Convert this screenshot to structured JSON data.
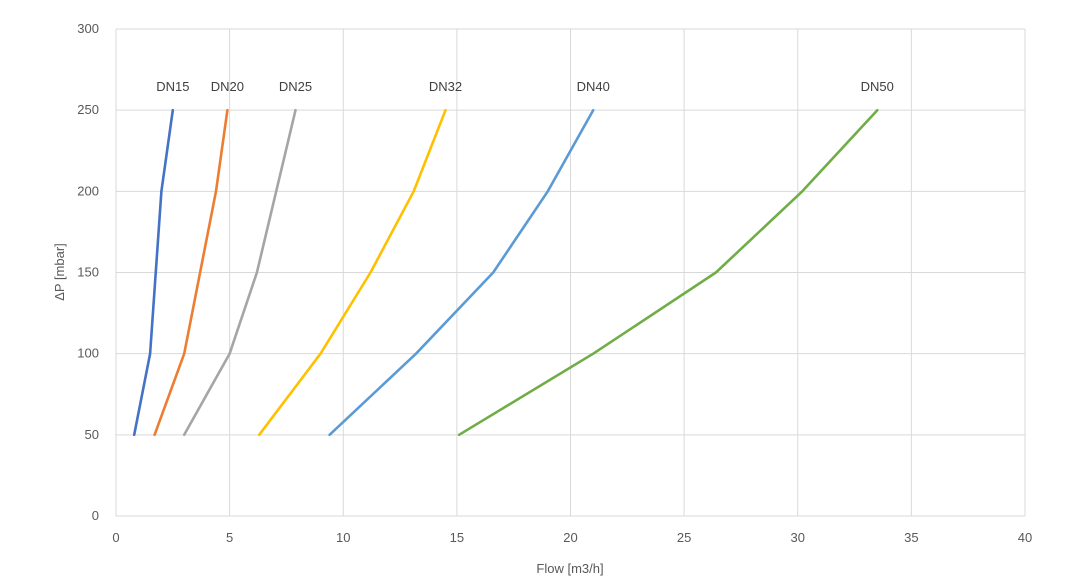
{
  "chart_data": {
    "type": "line",
    "title": "",
    "xlabel": "Flow [m3/h]",
    "ylabel": "ΔP [mbar]",
    "xlim": [
      0,
      40
    ],
    "ylim": [
      0,
      300
    ],
    "xticks": [
      0,
      5,
      10,
      15,
      20,
      25,
      30,
      35,
      40
    ],
    "yticks": [
      0,
      50,
      100,
      150,
      200,
      250,
      300
    ],
    "grid": true,
    "legend": "none",
    "series": [
      {
        "name": "DN15",
        "color": "#4472c4",
        "x": [
          0.8,
          1.5,
          2.0,
          2.5
        ],
        "y": [
          50,
          100,
          200,
          250
        ]
      },
      {
        "name": "DN20",
        "color": "#ed7d31",
        "x": [
          1.7,
          3.0,
          4.4,
          4.9
        ],
        "y": [
          50,
          100,
          200,
          250
        ]
      },
      {
        "name": "DN25",
        "color": "#a5a5a5",
        "x": [
          3.0,
          5.0,
          6.2,
          7.9
        ],
        "y": [
          50,
          100,
          150,
          250
        ]
      },
      {
        "name": "DN32",
        "color": "#ffc000",
        "x": [
          6.3,
          9.0,
          11.2,
          13.1,
          14.5
        ],
        "y": [
          50,
          100,
          150,
          200,
          250
        ]
      },
      {
        "name": "DN40",
        "color": "#5b9bd5",
        "x": [
          9.4,
          13.2,
          16.6,
          19.0,
          21.0
        ],
        "y": [
          50,
          100,
          150,
          200,
          250
        ]
      },
      {
        "name": "DN50",
        "color": "#70ad47",
        "x": [
          15.1,
          21.0,
          26.4,
          30.2,
          33.5
        ],
        "y": [
          50,
          100,
          150,
          200,
          250
        ]
      }
    ]
  }
}
